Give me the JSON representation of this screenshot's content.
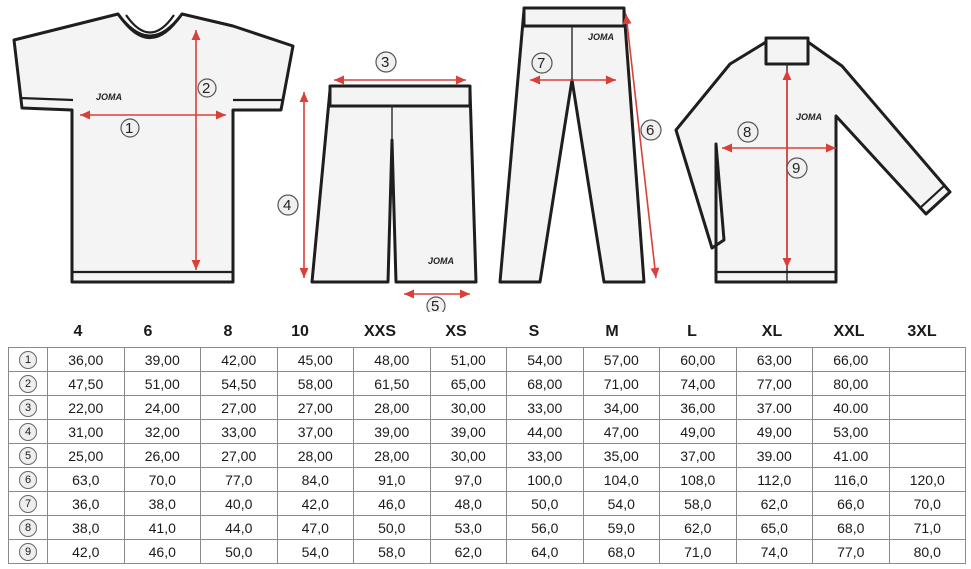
{
  "brand": {
    "shirt_logo": "JOMA",
    "shorts_logo": "JOMA",
    "pants_logo": "JOMA",
    "jacket_logo": "JOMA"
  },
  "diagram_markers": {
    "shirt_width": "1",
    "shirt_length": "2",
    "shorts_waist": "3",
    "shorts_length": "4",
    "shorts_hem": "5",
    "pants_length": "6",
    "pants_waist": "7",
    "jacket_width": "8",
    "jacket_length": "9"
  },
  "colors": {
    "measurement_line": "#d9403a",
    "outline": "#1e1e1e",
    "table_border": "#8a8a8a"
  },
  "sizes": [
    "4",
    "6",
    "8",
    "10",
    "XXS",
    "XS",
    "S",
    "M",
    "L",
    "XL",
    "XXL",
    "3XL"
  ],
  "rows": [
    {
      "marker": "1",
      "values": [
        "36,00",
        "39,00",
        "42,00",
        "45,00",
        "48,00",
        "51,00",
        "54,00",
        "57,00",
        "60,00",
        "63,00",
        "66,00",
        ""
      ]
    },
    {
      "marker": "2",
      "values": [
        "47,50",
        "51,00",
        "54,50",
        "58,00",
        "61,50",
        "65,00",
        "68,00",
        "71,00",
        "74,00",
        "77,00",
        "80,00",
        ""
      ]
    },
    {
      "marker": "3",
      "values": [
        "22,00",
        "24,00",
        "27,00",
        "27,00",
        "28,00",
        "30,00",
        "33,00",
        "34,00",
        "36,00",
        "37.00",
        "40.00",
        ""
      ]
    },
    {
      "marker": "4",
      "values": [
        "31,00",
        "32,00",
        "33,00",
        "37,00",
        "39,00",
        "39,00",
        "44,00",
        "47,00",
        "49,00",
        "49,00",
        "53,00",
        ""
      ]
    },
    {
      "marker": "5",
      "values": [
        "25,00",
        "26,00",
        "27,00",
        "28,00",
        "28,00",
        "30,00",
        "33,00",
        "35,00",
        "37,00",
        "39.00",
        "41.00",
        ""
      ]
    },
    {
      "marker": "6",
      "values": [
        "63,0",
        "70,0",
        "77,0",
        "84,0",
        "91,0",
        "97,0",
        "100,0",
        "104,0",
        "108,0",
        "112,0",
        "116,0",
        "120,0"
      ]
    },
    {
      "marker": "7",
      "values": [
        "36,0",
        "38,0",
        "40,0",
        "42,0",
        "46,0",
        "48,0",
        "50,0",
        "54,0",
        "58,0",
        "62,0",
        "66,0",
        "70,0"
      ]
    },
    {
      "marker": "8",
      "values": [
        "38,0",
        "41,0",
        "44,0",
        "47,0",
        "50,0",
        "53,0",
        "56,0",
        "59,0",
        "62,0",
        "65,0",
        "68,0",
        "71,0"
      ]
    },
    {
      "marker": "9",
      "values": [
        "42,0",
        "46,0",
        "50,0",
        "54,0",
        "58,0",
        "62,0",
        "64,0",
        "68,0",
        "71,0",
        "74,0",
        "77,0",
        "80,0"
      ]
    }
  ]
}
